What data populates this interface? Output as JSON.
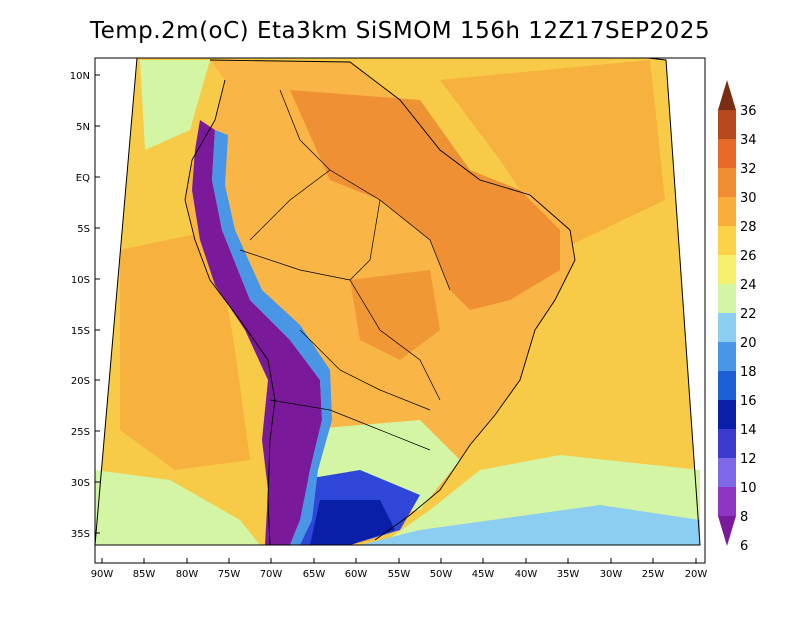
{
  "title": "Temp.2m(oC) Eta3km SiSMOM 156h 12Z17SEP2025",
  "lat_ticks": [
    "10N",
    "5N",
    "EQ",
    "5S",
    "10S",
    "15S",
    "20S",
    "25S",
    "30S",
    "35S"
  ],
  "lon_ticks": [
    "90W",
    "85W",
    "80W",
    "75W",
    "70W",
    "65W",
    "60W",
    "55W",
    "50W",
    "45W",
    "40W",
    "35W",
    "30W",
    "25W",
    "20W"
  ],
  "colorbar": {
    "labels": [
      "6",
      "8",
      "10",
      "12",
      "14",
      "16",
      "18",
      "20",
      "22",
      "24",
      "26",
      "28",
      "30",
      "32",
      "34",
      "36"
    ],
    "colors": [
      "#7a1a9a",
      "#8f35c4",
      "#7f68e8",
      "#3a3acd",
      "#0a1fa8",
      "#1f5fd6",
      "#4a96e6",
      "#8ccdf2",
      "#d3f5a4",
      "#f7f06e",
      "#fbd24a",
      "#f9ae3c",
      "#f08c32",
      "#e56a28",
      "#b5481c",
      "#7a2d12"
    ]
  },
  "field_colors": {
    "ocean_warm": "#f7ca47",
    "ocean_hot": "#f6b13f",
    "land_warm": "#f9b545",
    "land_hot": "#ec8a30",
    "cool": "#d3f5a4",
    "andes_cold": "#7a1a9a",
    "south_cold": "#2e47d8"
  }
}
